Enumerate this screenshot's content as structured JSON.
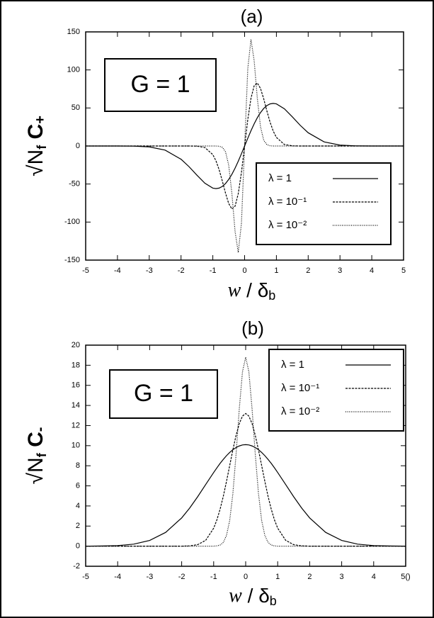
{
  "chart_data": [
    {
      "type": "line",
      "title": "(a)",
      "annotation": "G = 1",
      "xlabel": [
        "w",
        " / δ",
        "b"
      ],
      "ylabel": [
        "√N",
        "f",
        " C",
        "+"
      ],
      "legend": "lower right",
      "x": [
        -5,
        -4.5,
        -4,
        -3.5,
        -3,
        -2.5,
        -2,
        -1.75,
        -1.5,
        -1.25,
        -1,
        -0.9,
        -0.8,
        -0.7,
        -0.6,
        -0.5,
        -0.4,
        -0.3,
        -0.2,
        -0.1,
        0,
        0.1,
        0.2,
        0.3,
        0.4,
        0.5,
        0.6,
        0.7,
        0.8,
        0.9,
        1,
        1.25,
        1.5,
        1.75,
        2,
        2.5,
        3,
        3.5,
        4,
        4.5,
        5
      ],
      "series": [
        {
          "name": "λ = 1",
          "color": "#000000",
          "style": "solid",
          "values": [
            0,
            0,
            -0.02,
            -0.19,
            -1.19,
            -5.43,
            -17.39,
            -27.13,
            -38.4,
            -48.9,
            -55.35,
            -56.02,
            -55.31,
            -53.08,
            -49.3,
            -43.96,
            -37.18,
            -29.12,
            -20.02,
            -10.2,
            0,
            10.2,
            20.02,
            29.12,
            37.18,
            43.96,
            49.3,
            53.08,
            55.31,
            56.02,
            55.35,
            48.9,
            38.4,
            27.13,
            17.39,
            5.43,
            1.19,
            0.19,
            0.02,
            0,
            0
          ]
        },
        {
          "name": "λ = 10⁻¹",
          "color": "#000000",
          "style": "dashed",
          "values": [
            0,
            0,
            0,
            0,
            0,
            0,
            0,
            0,
            -0.2,
            -2,
            -11.3,
            -19.6,
            -31.4,
            -46.2,
            -62.1,
            -75.7,
            -82.8,
            -79.1,
            -62.7,
            -34.8,
            0,
            34.8,
            62.7,
            79.1,
            82.8,
            75.7,
            62.1,
            46.2,
            31.4,
            19.6,
            11.3,
            2,
            0.2,
            0,
            0,
            0,
            0,
            0,
            0,
            0,
            0
          ]
        },
        {
          "name": "λ = 10⁻²",
          "color": "#000000",
          "style": "dotted",
          "values": [
            0,
            0,
            0,
            0,
            0,
            0,
            0,
            0,
            0,
            0,
            0,
            0,
            -0.3,
            -1.8,
            -7.7,
            -25.3,
            -62.5,
            -112.4,
            -140,
            -101.8,
            0,
            101.8,
            140,
            112.4,
            62.5,
            25.3,
            7.7,
            1.8,
            0.3,
            0,
            0,
            0,
            0,
            0,
            0,
            0,
            0,
            0,
            0,
            0,
            0
          ]
        }
      ],
      "xlim": [
        -5,
        5
      ],
      "xticks": [
        -5,
        -4,
        -3,
        -2,
        -1,
        0,
        1,
        2,
        3,
        4,
        5
      ],
      "ylim": [
        -150,
        150
      ],
      "yticks": [
        -150,
        -100,
        -50,
        0,
        50,
        100,
        150
      ]
    },
    {
      "type": "line",
      "title": "(b)",
      "annotation": "G = 1",
      "xlabel": [
        "w",
        " / δ",
        "b"
      ],
      "ylabel": [
        "√N",
        "f",
        " C",
        "-"
      ],
      "legend": "upper right",
      "x": [
        -5,
        -4.5,
        -4,
        -3.5,
        -3,
        -2.5,
        -2,
        -1.75,
        -1.5,
        -1.25,
        -1,
        -0.9,
        -0.8,
        -0.7,
        -0.6,
        -0.5,
        -0.4,
        -0.3,
        -0.2,
        -0.1,
        0,
        0.1,
        0.2,
        0.3,
        0.4,
        0.5,
        0.6,
        0.7,
        0.8,
        0.9,
        1,
        1.25,
        1.5,
        1.75,
        2,
        2.5,
        3,
        3.5,
        4,
        4.5,
        5
      ],
      "series": [
        {
          "name": "λ = 1",
          "color": "#000000",
          "style": "solid",
          "values": [
            0,
            0.02,
            0.06,
            0.2,
            0.57,
            1.37,
            2.81,
            3.79,
            4.92,
            6.13,
            7.33,
            7.79,
            8.23,
            8.63,
            9,
            9.32,
            9.6,
            9.81,
            9.97,
            10.07,
            10.1,
            10.07,
            9.97,
            9.81,
            9.6,
            9.32,
            9,
            8.63,
            8.23,
            7.79,
            7.33,
            6.13,
            4.92,
            3.79,
            2.81,
            1.37,
            0.57,
            0.2,
            0.06,
            0.02,
            0
          ]
        },
        {
          "name": "λ = 10⁻¹",
          "color": "#000000",
          "style": "dashed",
          "values": [
            0,
            0,
            0,
            0,
            0,
            0,
            0,
            0.03,
            0.15,
            0.58,
            1.79,
            2.61,
            3.67,
            4.95,
            6.43,
            8.01,
            9.58,
            11.03,
            12.19,
            12.94,
            13.2,
            12.94,
            12.19,
            11.03,
            9.58,
            8.01,
            6.43,
            4.95,
            3.67,
            2.61,
            1.79,
            0.58,
            0.15,
            0.03,
            0,
            0,
            0,
            0,
            0,
            0,
            0
          ]
        },
        {
          "name": "λ = 10⁻²",
          "color": "#000000",
          "style": "dotted",
          "values": [
            0,
            0,
            0,
            0,
            0,
            0,
            0,
            0,
            0,
            0,
            0,
            0.03,
            0.11,
            0.37,
            1.06,
            2.54,
            5.23,
            9.15,
            13.65,
            17.35,
            18.8,
            17.35,
            13.65,
            9.15,
            5.23,
            2.54,
            1.06,
            0.37,
            0.11,
            0.03,
            0,
            0,
            0,
            0,
            0,
            0,
            0,
            0,
            0,
            0,
            0
          ]
        }
      ],
      "xlim": [
        -5,
        5
      ],
      "xticks": [
        -5,
        -4,
        -3,
        -2,
        -1,
        0,
        1,
        2,
        3,
        4,
        {
          "value": 5,
          "label": "5()"
        }
      ],
      "ylim": [
        -2,
        20
      ],
      "yticks": [
        -2,
        0,
        2,
        4,
        6,
        8,
        10,
        12,
        14,
        16,
        18,
        20
      ]
    }
  ]
}
